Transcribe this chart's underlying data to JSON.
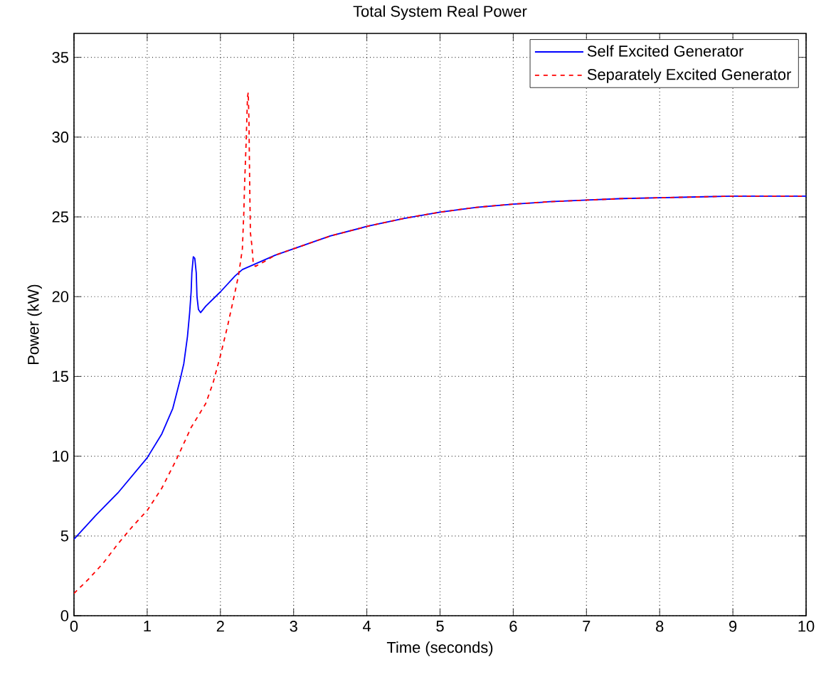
{
  "chart_data": {
    "type": "line",
    "title": "Total System Real Power",
    "xlabel": "Time (seconds)",
    "ylabel": "Power (kW)",
    "xlim": [
      0,
      10
    ],
    "ylim": [
      0,
      36.5
    ],
    "xticks": [
      0,
      1,
      2,
      3,
      4,
      5,
      6,
      7,
      8,
      9,
      10
    ],
    "yticks": [
      0,
      5,
      10,
      15,
      20,
      25,
      30,
      35
    ],
    "grid": true,
    "legend": "top right",
    "series": [
      {
        "name": "Self Excited Generator",
        "color": "#0000ff",
        "line_style": "solid",
        "x": [
          0,
          0.3,
          0.6,
          0.8,
          1,
          1.2,
          1.35,
          1.45,
          1.5,
          1.55,
          1.58,
          1.6,
          1.61,
          1.63,
          1.65,
          1.67,
          1.68,
          1.7,
          1.73,
          1.8,
          2.0,
          2.2,
          2.3,
          2.5,
          2.75,
          3,
          3.5,
          4,
          4.5,
          5,
          5.5,
          6,
          6.5,
          7,
          7.5,
          8,
          8.5,
          9,
          10
        ],
        "values": [
          4.8,
          6.3,
          7.7,
          8.8,
          9.9,
          11.4,
          13,
          14.8,
          15.8,
          17.5,
          19,
          20.3,
          21.5,
          22.5,
          22.4,
          21.5,
          20,
          19.2,
          19,
          19.4,
          20.3,
          21.3,
          21.7,
          22.1,
          22.6,
          23,
          23.8,
          24.4,
          24.9,
          25.3,
          25.6,
          25.8,
          25.95,
          26.05,
          26.15,
          26.2,
          26.25,
          26.3,
          26.3
        ]
      },
      {
        "name": "Separately Excited Generator",
        "color": "#ff0000",
        "line_style": "dashed",
        "x": [
          0,
          0.2,
          0.4,
          0.6,
          0.8,
          1,
          1.2,
          1.4,
          1.6,
          1.8,
          1.9,
          2.0,
          2.1,
          2.2,
          2.25,
          2.3,
          2.32,
          2.33,
          2.35,
          2.37,
          2.38,
          2.39,
          2.4,
          2.41,
          2.43,
          2.45,
          2.48,
          2.6,
          2.75,
          3,
          3.5,
          4,
          4.5,
          5,
          5.5,
          6,
          6.5,
          7,
          7.5,
          8,
          8.5,
          9,
          10
        ],
        "values": [
          1.4,
          2.3,
          3.3,
          4.5,
          5.6,
          6.6,
          8,
          9.8,
          11.8,
          13.3,
          14.6,
          16.3,
          18.2,
          20.3,
          21.4,
          23,
          25.3,
          27,
          29.5,
          32.5,
          32.8,
          31,
          27,
          24,
          23.2,
          22,
          21.9,
          22.2,
          22.6,
          23,
          23.8,
          24.4,
          24.9,
          25.3,
          25.6,
          25.8,
          25.95,
          26.05,
          26.15,
          26.2,
          26.25,
          26.3,
          26.3
        ]
      }
    ]
  }
}
